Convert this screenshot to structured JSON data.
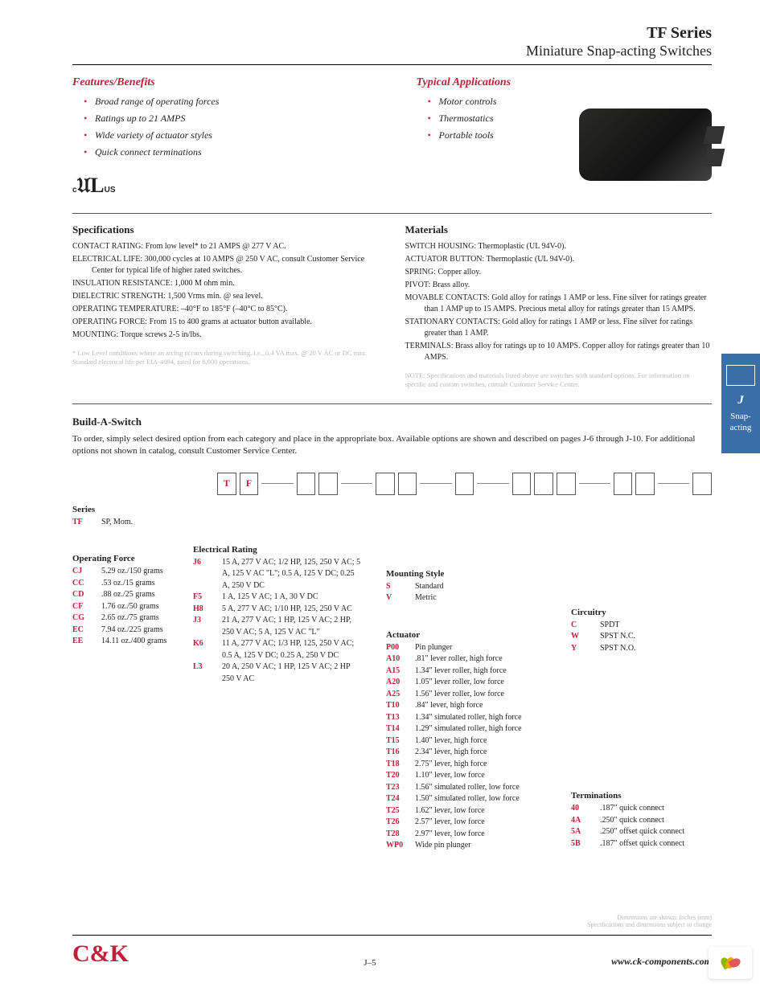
{
  "header": {
    "series": "TF Series",
    "subtitle": "Miniature Snap-acting Switches"
  },
  "features": {
    "title": "Features/Benefits",
    "items": [
      "Broad range of operating forces",
      "Ratings up to 21 AMPS",
      "Wide variety of actuator styles",
      "Quick connect terminations"
    ]
  },
  "applications": {
    "title": "Typical Applications",
    "items": [
      "Motor controls",
      "Thermostatics",
      "Portable tools"
    ]
  },
  "specs": {
    "title": "Specifications",
    "lines": [
      "CONTACT RATING: From low level* to 21 AMPS @ 277 V AC.",
      "ELECTRICAL LIFE: 300,000 cycles at 10 AMPS @ 250 V AC, consult Customer Service Center for typical life of higher rated switches.",
      "INSULATION RESISTANCE: 1,000 M ohm min.",
      "DIELECTRIC STRENGTH: 1,500 Vrms min. @ sea level.",
      "OPERATING TEMPERATURE: –40°F to 185°F (–40°C to 85°C).",
      "OPERATING FORCE: From 15 to 400 grams at actuator button available.",
      "MOUNTING: Torque screws 2-5 in/lbs."
    ],
    "fine": "* Low Level conditions where an arcing occurs during switching, i.e., 0.4 VA max. @ 20 V AC or DC max. Standard electrical life per EIA-4094, rated for 6,000 operations."
  },
  "materials": {
    "title": "Materials",
    "lines": [
      "SWITCH HOUSING: Thermoplastic (UL 94V-0).",
      "ACTUATOR BUTTON: Thermoplastic (UL 94V-0).",
      "SPRING: Copper alloy.",
      "PIVOT: Brass alloy.",
      "MOVABLE CONTACTS: Gold alloy for ratings 1 AMP or less. Fine silver for ratings greater than 1 AMP up to 15 AMPS. Precious metal alloy for ratings greater than 15 AMPS.",
      "STATIONARY CONTACTS: Gold alloy for ratings 1 AMP or less. Fine silver for ratings greater than 1 AMP.",
      "TERMINALS: Brass alloy for ratings up to 10 AMPS. Copper alloy for ratings greater than 10 AMPS."
    ],
    "fine": "NOTE: Specifications and materials listed above are switches with standard options. For information on specific and custom switches, consult Customer Service Center."
  },
  "build": {
    "title": "Build-A-Switch",
    "desc": "To order, simply select desired option from each category and place in the appropriate box. Available options are shown and described on pages J-6 through J-10. For additional options not shown in catalog, consult Customer Service Center.",
    "prefill": [
      "T",
      "F"
    ]
  },
  "series_opt": {
    "title": "Series",
    "rows": [
      {
        "code": "TF",
        "desc": "SP, Mom."
      }
    ]
  },
  "force": {
    "title": "Operating Force",
    "rows": [
      {
        "code": "CJ",
        "desc": "5.29 oz./150 grams"
      },
      {
        "code": "CC",
        "desc": ".53 oz./15 grams"
      },
      {
        "code": "CD",
        "desc": ".88 oz./25 grams"
      },
      {
        "code": "CF",
        "desc": "1.76 oz./50 grams"
      },
      {
        "code": "CG",
        "desc": "2.65 oz./75 grams"
      },
      {
        "code": "EC",
        "desc": "7.94 oz./225 grams"
      },
      {
        "code": "EE",
        "desc": "14.11 oz./400 grams"
      }
    ]
  },
  "rating": {
    "title": "Electrical Rating",
    "rows": [
      {
        "code": "J6",
        "desc": "15 A, 277 V AC; 1/2 HP, 125, 250 V AC; 5 A, 125 V AC \"L\"; 0.5 A, 125 V DC; 0.25 A, 250 V DC"
      },
      {
        "code": "F5",
        "desc": "1 A, 125 V AC; 1 A, 30 V DC"
      },
      {
        "code": "H8",
        "desc": "5 A, 277 V AC; 1/10 HP, 125, 250 V AC"
      },
      {
        "code": "J3",
        "desc": "21 A, 277 V AC; 1 HP, 125 V AC; 2 HP, 250 V AC; 5 A, 125 V AC \"L\""
      },
      {
        "code": "K6",
        "desc": "11 A, 277 V AC; 1/3 HP, 125, 250 V AC; 0.5 A, 125 V DC; 0.25 A, 250 V DC"
      },
      {
        "code": "L3",
        "desc": "20 A, 250 V AC; 1 HP, 125 V AC; 2 HP 250 V AC"
      }
    ]
  },
  "mounting": {
    "title": "Mounting Style",
    "rows": [
      {
        "code": "S",
        "desc": "Standard"
      },
      {
        "code": "V",
        "desc": "Metric"
      }
    ]
  },
  "actuator": {
    "title": "Actuator",
    "rows": [
      {
        "code": "P00",
        "desc": "Pin plunger"
      },
      {
        "code": "A10",
        "desc": ".81\" lever roller, high force"
      },
      {
        "code": "A15",
        "desc": "1.34\" lever roller, high force"
      },
      {
        "code": "A20",
        "desc": "1.05\" lever roller, low force"
      },
      {
        "code": "A25",
        "desc": "1.56\" lever roller, low force"
      },
      {
        "code": "T10",
        "desc": ".84\" lever, high force"
      },
      {
        "code": "T13",
        "desc": "1.34\" simulated roller, high force"
      },
      {
        "code": "T14",
        "desc": "1.29\" simulated roller, high force"
      },
      {
        "code": "T15",
        "desc": "1.40\" lever, high force"
      },
      {
        "code": "T16",
        "desc": "2.34\" lever, high force"
      },
      {
        "code": "T18",
        "desc": "2.75\" lever, high force"
      },
      {
        "code": "T20",
        "desc": "1.10\" lever, low force"
      },
      {
        "code": "T23",
        "desc": "1.56\" simulated roller, low force"
      },
      {
        "code": "T24",
        "desc": "1.50\" simulated roller, low force"
      },
      {
        "code": "T25",
        "desc": "1.62\" lever, low force"
      },
      {
        "code": "T26",
        "desc": "2.57\" lever, low force"
      },
      {
        "code": "T28",
        "desc": "2.97\" lever, low force"
      },
      {
        "code": "WP0",
        "desc": "Wide pin plunger"
      }
    ]
  },
  "terminations": {
    "title": "Terminations",
    "rows": [
      {
        "code": "40",
        "desc": ".187\" quick connect"
      },
      {
        "code": "4A",
        "desc": ".250\" quick connect"
      },
      {
        "code": "5A",
        "desc": ".250\" offset quick connect"
      },
      {
        "code": "5B",
        "desc": ".187\" offset quick connect"
      }
    ]
  },
  "circuitry": {
    "title": "Circuitry",
    "rows": [
      {
        "code": "C",
        "desc": "SPDT"
      },
      {
        "code": "W",
        "desc": "SPST N.C."
      },
      {
        "code": "Y",
        "desc": "SPST N.O."
      }
    ]
  },
  "sidetab": {
    "letter": "J",
    "text": "Snap-acting"
  },
  "footer": {
    "logo": "C&K",
    "fine1": "Dimensions are shown: Inches (mm)",
    "fine2": "Specifications and dimensions subject to change",
    "page": "J–5",
    "url": "www.ck-components.com"
  },
  "colors": {
    "brand_red": "#c41e3a",
    "tab_blue": "#3a6ea8",
    "text": "#222222",
    "faint": "#bbbbbb"
  }
}
